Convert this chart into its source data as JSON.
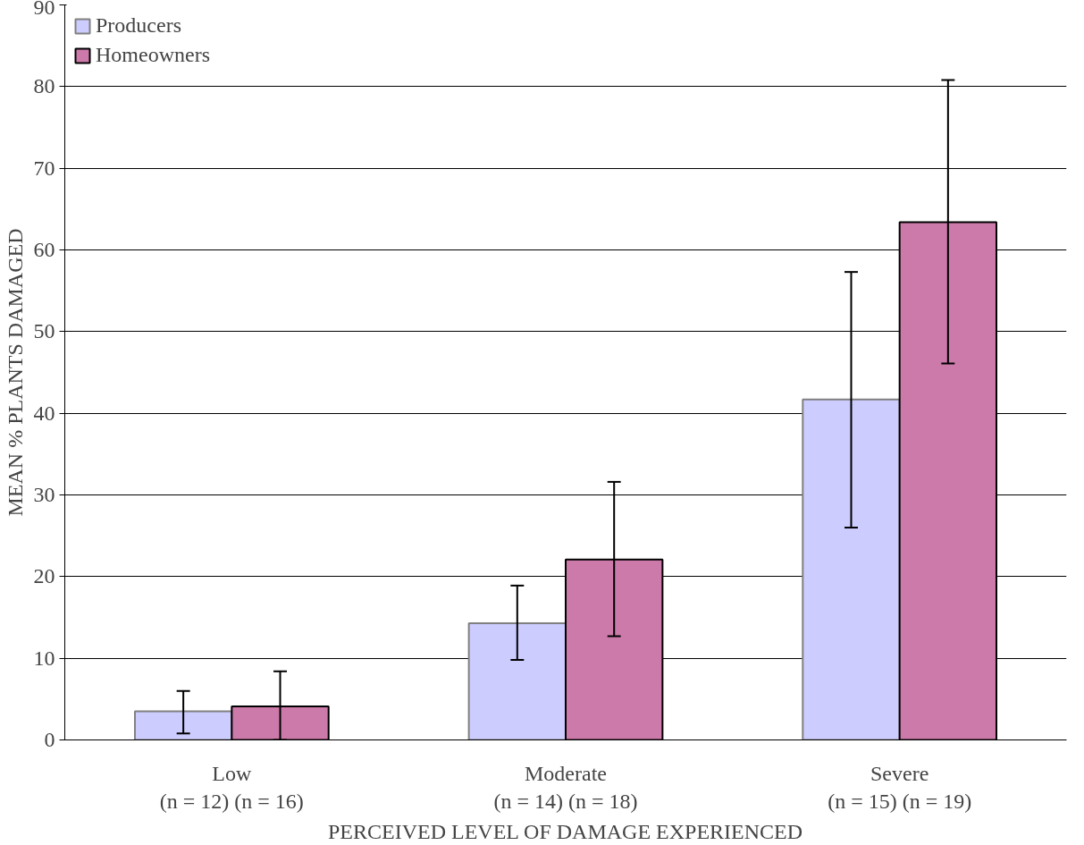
{
  "chart_data": {
    "type": "bar",
    "xlabel": "PERCEIVED LEVEL OF DAMAGE EXPERIENCED",
    "ylabel": "MEAN % PLANTS DAMAGED",
    "categories": [
      "Low\n(n = 12) (n = 16)",
      "Moderate\n(n = 14) (n = 18)",
      "Severe\n(n = 15) (n = 19)"
    ],
    "series": [
      {
        "name": "Producers",
        "color": "#ccccff",
        "values": [
          3.5,
          14.3,
          41.7
        ],
        "errors": [
          [
            0.8,
            6.0
          ],
          [
            9.8,
            18.9
          ],
          [
            26.0,
            57.3
          ]
        ]
      },
      {
        "name": "Homeowners",
        "color": "#cc7aaa",
        "values": [
          4.1,
          22.1,
          63.4
        ],
        "errors": [
          [
            0,
            8.4
          ],
          [
            12.7,
            31.6
          ],
          [
            46.1,
            80.8
          ]
        ]
      }
    ],
    "ylim": [
      0,
      90
    ],
    "yticks": [
      0,
      10,
      20,
      30,
      40,
      50,
      60,
      70,
      80,
      90
    ],
    "grid": "y",
    "legend": "top left"
  }
}
